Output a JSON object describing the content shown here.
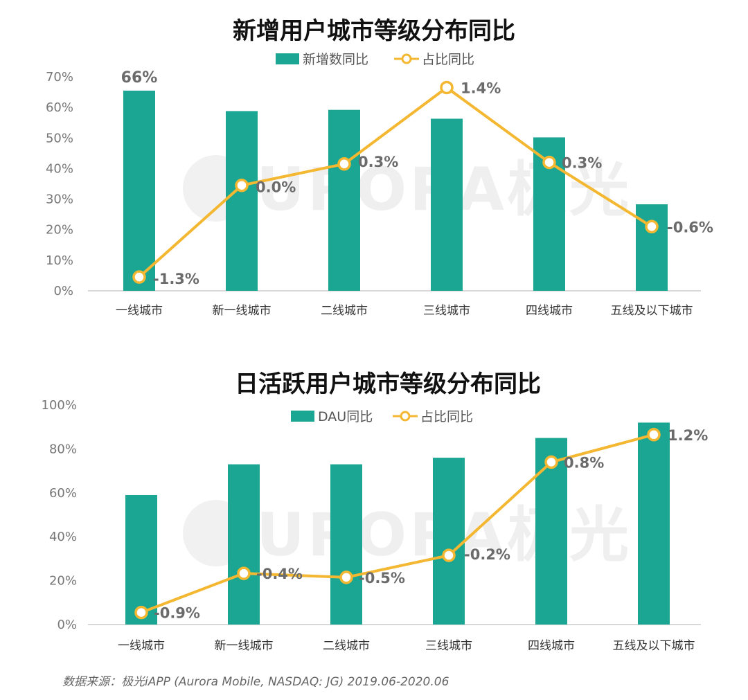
{
  "colors": {
    "bar": "#1aa692",
    "line": "#f4b731",
    "marker_fill": "#ffffff"
  },
  "watermark": "URORA极光",
  "source": "数据来源：极光iAPP (Aurora Mobile, NASDAQ: JG) 2019.06-2020.06",
  "chart_data": [
    {
      "type": "bar",
      "title": "新增用户城市等级分布同比",
      "categories": [
        "一线城市",
        "新一线城市",
        "二线城市",
        "三线城市",
        "四线城市",
        "五线及以下城市"
      ],
      "legend": [
        "新增数同比",
        "占比同比"
      ],
      "ylim": [
        0,
        70
      ],
      "yticks": [
        "0%",
        "10%",
        "20%",
        "30%",
        "40%",
        "50%",
        "60%",
        "70%"
      ],
      "series": [
        {
          "name": "新增数同比",
          "kind": "bar",
          "values": [
            65.5,
            58.8,
            59.2,
            56.3,
            50.2,
            28.3
          ],
          "labels": [
            "66%",
            "",
            "",
            "",
            "",
            ""
          ]
        },
        {
          "name": "占比同比",
          "kind": "line",
          "values": [
            4.5,
            34.5,
            41.5,
            66.5,
            42.0,
            21.0
          ],
          "labels": [
            "-1.3%",
            "0.0%",
            "0.3%",
            "1.4%",
            "0.3%",
            "-0.6%"
          ]
        }
      ]
    },
    {
      "type": "bar",
      "title": "日活跃用户城市等级分布同比",
      "categories": [
        "一线城市",
        "新一线城市",
        "二线城市",
        "三线城市",
        "四线城市",
        "五线及以下城市"
      ],
      "legend": [
        "DAU同比",
        "占比同比"
      ],
      "ylim": [
        0,
        100
      ],
      "yticks": [
        "0%",
        "20%",
        "40%",
        "60%",
        "80%",
        "100%"
      ],
      "series": [
        {
          "name": "DAU同比",
          "kind": "bar",
          "values": [
            59.0,
            73.0,
            73.0,
            76.0,
            85.0,
            92.0
          ],
          "labels": [
            "",
            "",
            "",
            "",
            "",
            ""
          ]
        },
        {
          "name": "占比同比",
          "kind": "line",
          "values": [
            5.5,
            23.3,
            21.5,
            31.5,
            74.0,
            86.5
          ],
          "labels": [
            "-0.9%",
            "-0.4%",
            "-0.5%",
            "-0.2%",
            "0.8%",
            "1.2%"
          ]
        }
      ]
    }
  ]
}
